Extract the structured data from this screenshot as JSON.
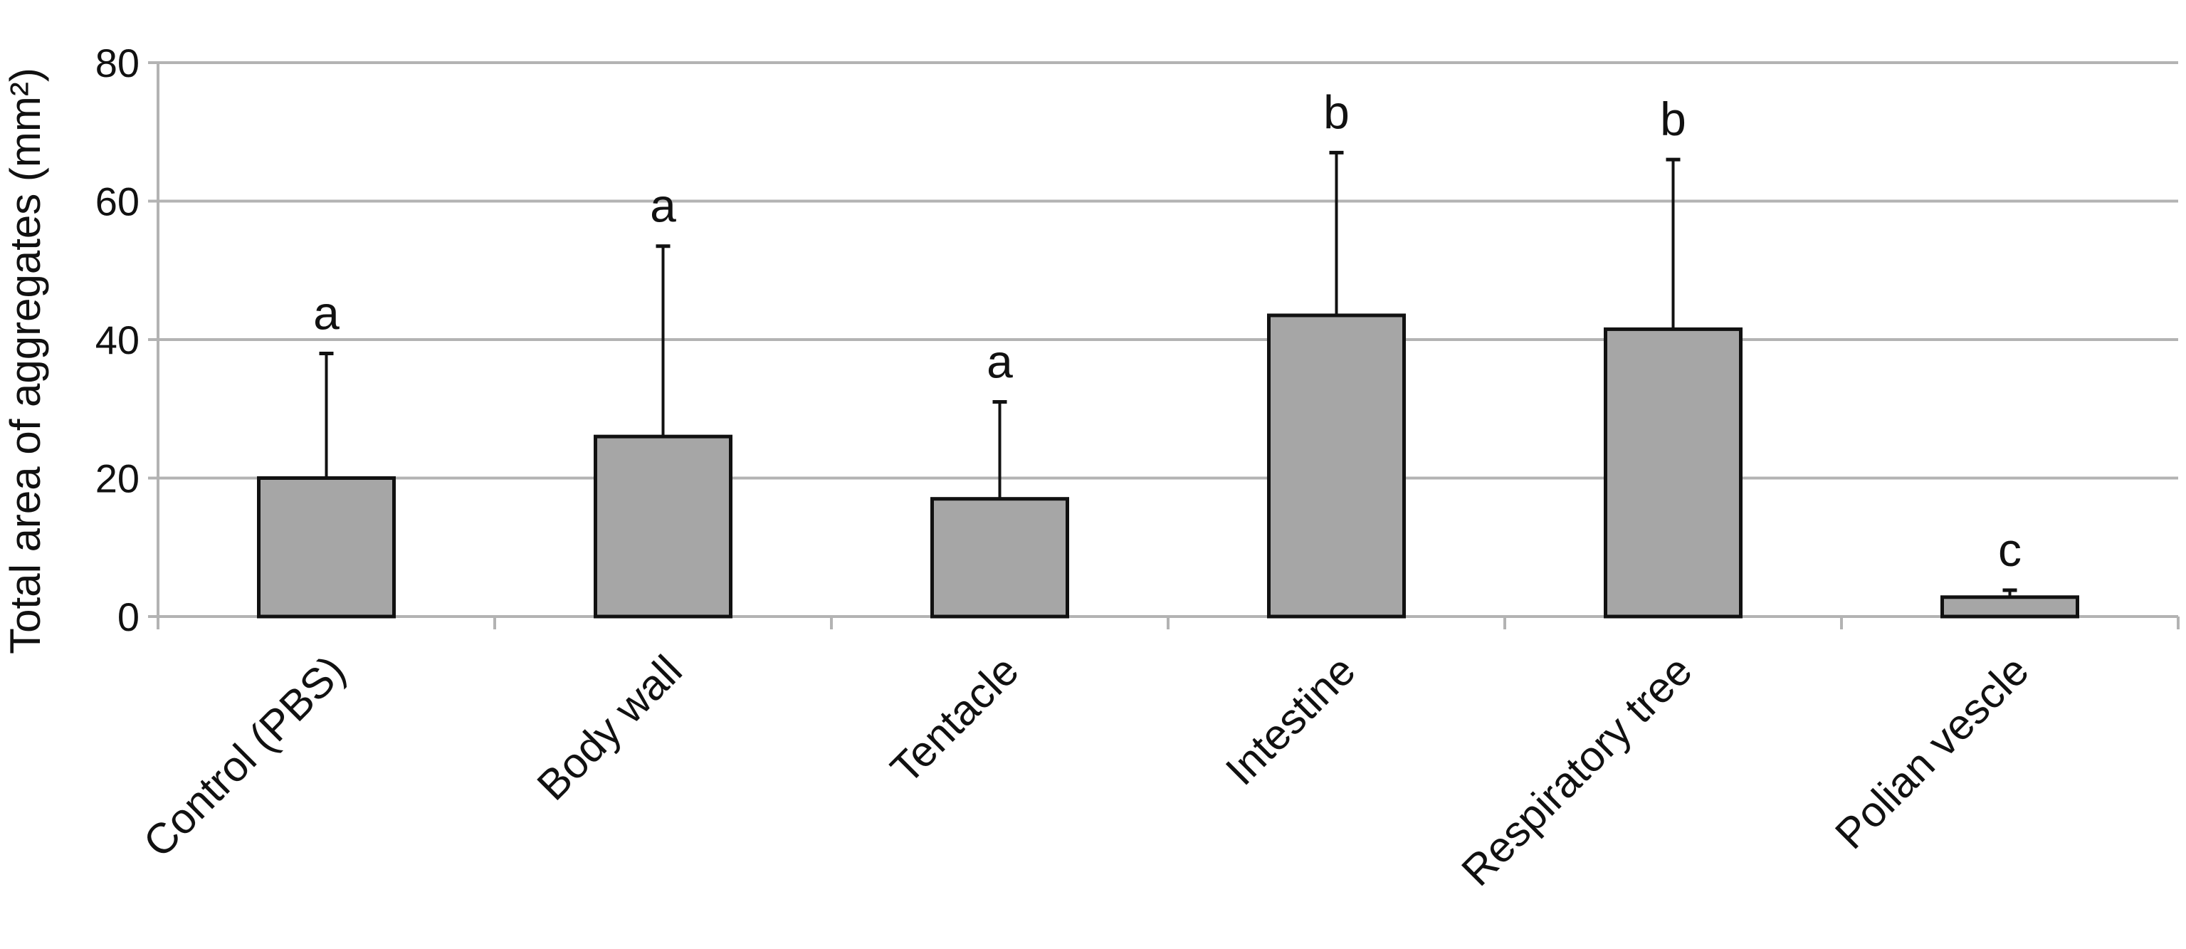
{
  "chart_data": {
    "type": "bar",
    "title": "",
    "xlabel": "",
    "ylabel": "Total area of aggregates (mm²)",
    "ylim": [
      0,
      80
    ],
    "yticks": [
      0,
      20,
      40,
      60,
      80
    ],
    "grid": true,
    "categories": [
      "Control (PBS)",
      "Body wall",
      "Tentacle",
      "Intestine",
      "Respiratory tree",
      "Polian vescle"
    ],
    "values": [
      20,
      26,
      17,
      43.5,
      41.5,
      2.8
    ],
    "error_upper": [
      38,
      53.5,
      31,
      67,
      66,
      3.8
    ],
    "significance_letters": [
      "a",
      "a",
      "a",
      "b",
      "b",
      "c"
    ],
    "bar_color": "#a6a6a6",
    "bar_edge_color": "#111111",
    "grid_color": "#b3b3b3"
  }
}
